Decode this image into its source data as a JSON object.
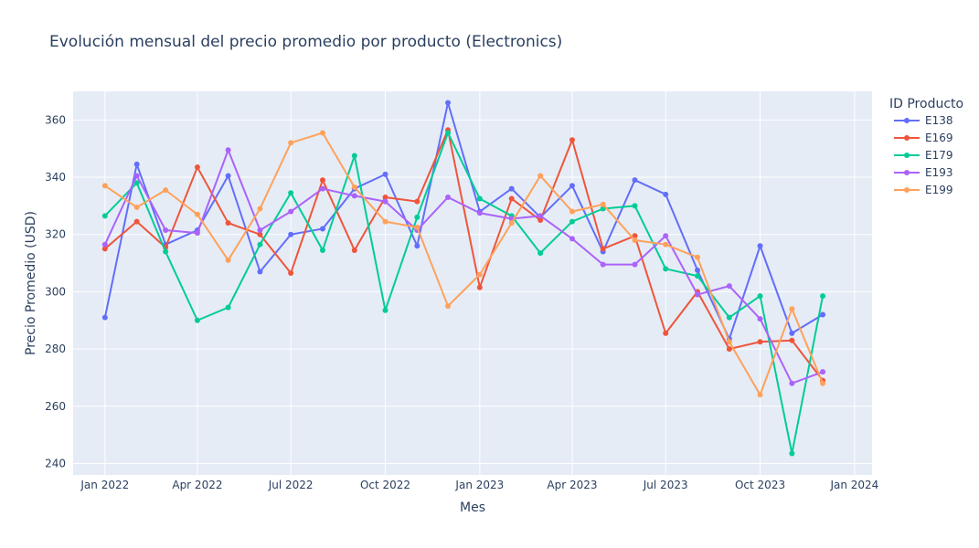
{
  "chart_data": {
    "type": "line",
    "title": "Evolución mensual del precio promedio por producto (Electronics)",
    "xlabel": "Mes",
    "ylabel": "Precio Promedio (USD)",
    "legend_title": "ID Producto",
    "legend_position": "right",
    "grid": true,
    "ylim": [
      236,
      370
    ],
    "yticks": [
      240,
      260,
      280,
      300,
      320,
      340,
      360
    ],
    "xlim": [
      "2021-12-01",
      "2024-01-18"
    ],
    "xticks": [
      {
        "date": "2022-01-01",
        "label": "Jan 2022"
      },
      {
        "date": "2022-04-01",
        "label": "Apr 2022"
      },
      {
        "date": "2022-07-01",
        "label": "Jul 2022"
      },
      {
        "date": "2022-10-01",
        "label": "Oct 2022"
      },
      {
        "date": "2023-01-01",
        "label": "Jan 2023"
      },
      {
        "date": "2023-04-01",
        "label": "Apr 2023"
      },
      {
        "date": "2023-07-01",
        "label": "Jul 2023"
      },
      {
        "date": "2023-10-01",
        "label": "Oct 2023"
      },
      {
        "date": "2024-01-01",
        "label": "Jan 2024"
      }
    ],
    "x": [
      "2022-01-01",
      "2022-02-01",
      "2022-03-01",
      "2022-04-01",
      "2022-05-01",
      "2022-06-01",
      "2022-07-01",
      "2022-08-01",
      "2022-09-01",
      "2022-10-01",
      "2022-11-01",
      "2022-12-01",
      "2023-01-01",
      "2023-02-01",
      "2023-03-01",
      "2023-04-01",
      "2023-05-01",
      "2023-06-01",
      "2023-07-01",
      "2023-08-01",
      "2023-09-01",
      "2023-10-01",
      "2023-11-01",
      "2023-12-01"
    ],
    "series": [
      {
        "name": "E138",
        "color": "#636efa",
        "values": [
          291,
          344.5,
          316.5,
          321.5,
          340.5,
          307,
          320,
          322,
          336,
          341,
          316,
          366,
          328,
          336,
          326,
          337,
          314,
          339,
          334,
          307.5,
          283.5,
          316,
          285.5,
          292
        ]
      },
      {
        "name": "E169",
        "color": "#ef553b",
        "values": [
          315,
          324.5,
          315.5,
          343.5,
          324,
          320,
          306.5,
          339,
          314.5,
          333,
          331.5,
          356.5,
          301.5,
          332.5,
          325,
          353,
          315,
          319.5,
          285.5,
          300,
          280,
          282.5,
          283,
          269
        ]
      },
      {
        "name": "E179",
        "color": "#00cc96",
        "values": [
          326.5,
          338,
          314,
          290,
          294.5,
          316.5,
          334.5,
          314.5,
          347.5,
          293.5,
          326,
          355.5,
          332.5,
          326.5,
          313.5,
          324.5,
          329,
          330,
          308,
          305.5,
          291,
          298.5,
          243.5,
          298.5
        ]
      },
      {
        "name": "E193",
        "color": "#ab63fa",
        "values": [
          316.5,
          340.5,
          321.5,
          320.5,
          349.5,
          321.5,
          328,
          336,
          333.5,
          331.5,
          321.5,
          333,
          327.5,
          325.5,
          326.5,
          318.5,
          309.5,
          309.5,
          319.5,
          299,
          302,
          290.5,
          268,
          272
        ]
      },
      {
        "name": "E199",
        "color": "#ffa15a",
        "values": [
          337,
          329.5,
          335.5,
          327,
          311,
          329,
          352,
          355.5,
          336.5,
          324.5,
          322.5,
          295,
          306,
          324,
          340.5,
          328,
          330.5,
          318,
          316.5,
          312,
          282.5,
          264,
          294,
          268
        ]
      }
    ]
  }
}
